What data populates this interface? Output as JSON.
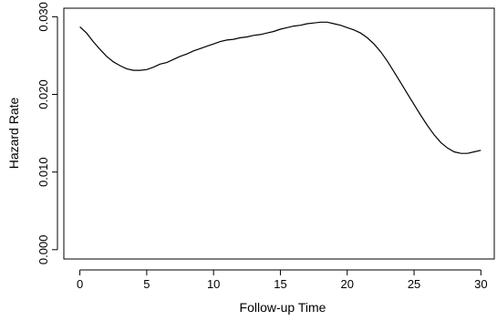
{
  "chart_data": {
    "type": "line",
    "xlabel": "Follow-up Time",
    "ylabel": "Hazard Rate",
    "xlim": [
      -1.2,
      31.0
    ],
    "ylim": [
      -0.0012,
      0.0311
    ],
    "x_ticks": [
      0,
      5,
      10,
      15,
      20,
      25,
      30
    ],
    "y_ticks": [
      0.0,
      0.01,
      0.02,
      0.03
    ],
    "x_tick_labels": [
      "0",
      "5",
      "10",
      "15",
      "20",
      "25",
      "30"
    ],
    "y_tick_labels": [
      "0.000",
      "0.010",
      "0.020",
      "0.030"
    ],
    "grid": false,
    "series": [
      {
        "x": [
          0,
          0.5,
          1,
          1.5,
          2,
          2.5,
          3,
          3.5,
          4,
          4.5,
          5,
          5.5,
          6,
          6.5,
          7,
          7.5,
          8,
          8.5,
          9,
          9.5,
          10,
          10.5,
          11,
          11.5,
          12,
          12.5,
          13,
          13.5,
          14,
          14.5,
          15,
          15.5,
          16,
          16.5,
          17,
          17.5,
          18,
          18.5,
          19,
          19.5,
          20,
          20.5,
          21,
          21.5,
          22,
          22.5,
          23,
          23.5,
          24,
          24.5,
          25,
          25.5,
          26,
          26.5,
          27,
          27.5,
          28,
          28.5,
          29,
          29.5,
          30
        ],
        "values": [
          0.0287,
          0.0279,
          0.0268,
          0.0258,
          0.0249,
          0.0242,
          0.0237,
          0.0233,
          0.0231,
          0.0231,
          0.0232,
          0.0235,
          0.0239,
          0.0241,
          0.0245,
          0.0249,
          0.0252,
          0.0256,
          0.0259,
          0.0262,
          0.0265,
          0.0268,
          0.027,
          0.0271,
          0.0273,
          0.0274,
          0.0276,
          0.0277,
          0.0279,
          0.0281,
          0.0284,
          0.0286,
          0.0288,
          0.0289,
          0.0291,
          0.0292,
          0.0293,
          0.0293,
          0.0291,
          0.0289,
          0.0286,
          0.0283,
          0.0279,
          0.0273,
          0.0265,
          0.0255,
          0.0243,
          0.0229,
          0.0215,
          0.0201,
          0.0187,
          0.0173,
          0.016,
          0.0148,
          0.0138,
          0.0131,
          0.0126,
          0.0124,
          0.0124,
          0.0126,
          0.0128
        ]
      }
    ]
  }
}
